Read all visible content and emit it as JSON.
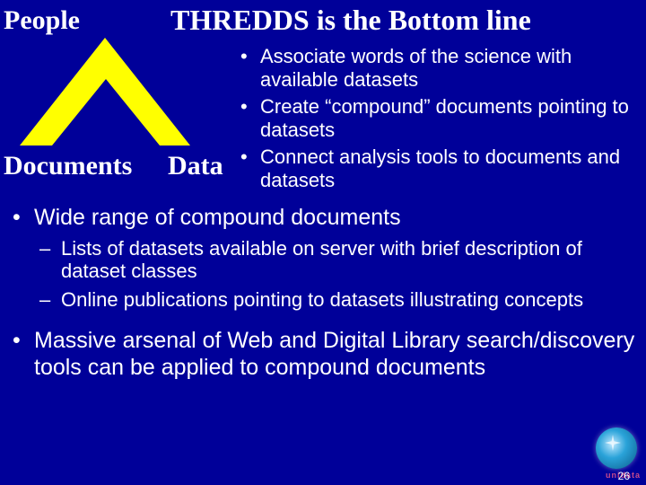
{
  "colors": {
    "background": "#000099",
    "triangle_fill": "#ffff00",
    "text": "#ffffff",
    "logo_text": "#c94b8c"
  },
  "typography": {
    "title_fontsize": 32,
    "label_fontsize": 30,
    "bullet_right_fontsize": 22,
    "bullet_main_fontsize": 25,
    "sub_bullet_fontsize": 22,
    "title_font": "Times New Roman",
    "body_font": "Arial"
  },
  "title": "THREDDS is the Bottom line",
  "triangle": {
    "type": "triangle",
    "vertices": {
      "top": "People",
      "left": "Documents",
      "right": "Data"
    },
    "fill_color": "#ffff00",
    "inner_color": "#000099"
  },
  "right_bullets": [
    "Associate words of the science with available datasets",
    "Create “compound” documents pointing to datasets",
    "Connect analysis tools to documents and datasets"
  ],
  "main_bullets": [
    {
      "text": "Wide range of compound documents",
      "sub": [
        "Lists of datasets available on server with brief description of dataset classes",
        "Online publications pointing to datasets illustrating concepts"
      ]
    },
    {
      "text": "Massive arsenal of Web and Digital Library search/discovery tools can be applied to compound documents",
      "sub": []
    }
  ],
  "footer": {
    "logo_label": "unidata",
    "page_number": "26"
  }
}
